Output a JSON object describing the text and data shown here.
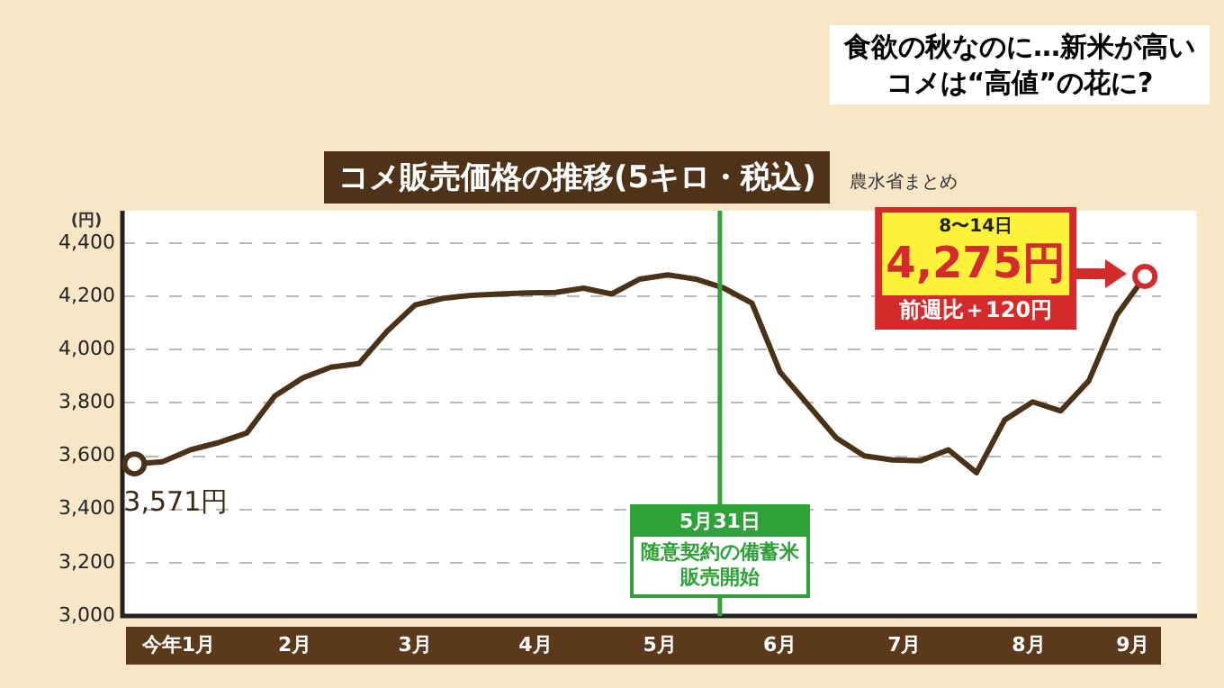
{
  "chart_data": {
    "type": "line",
    "title": "コメ販売価格の推移(5キロ・税込)",
    "ylabel": "(円)",
    "x": [
      "--01-05",
      "--01-12",
      "--01-19",
      "--01-26",
      "--02-02",
      "--02-09",
      "--02-16",
      "--02-23",
      "--03-02",
      "--03-09",
      "--03-16",
      "--03-23",
      "--03-30",
      "--04-06",
      "--04-13",
      "--04-20",
      "--04-27",
      "--05-04",
      "--05-11",
      "--05-18",
      "--05-25",
      "--06-01",
      "--06-08",
      "--06-15",
      "--06-22",
      "--06-29",
      "--07-06",
      "--07-13",
      "--07-20",
      "--07-27",
      "--08-03",
      "--08-10",
      "--08-17",
      "--08-24",
      "--08-31",
      "--09-07",
      "--09-14"
    ],
    "series": [
      {
        "color": "#4a3219",
        "values": [
          3571,
          3579,
          3624,
          3651,
          3687,
          3826,
          3894,
          3934,
          3948,
          4069,
          4168,
          4193,
          4204,
          4209,
          4213,
          4215,
          4231,
          4209,
          4265,
          4281,
          4265,
          4231,
          4175,
          3916,
          3793,
          3669,
          3601,
          3586,
          3583,
          3624,
          3538,
          3736,
          3804,
          3770,
          3883,
          4130,
          4275
        ]
      }
    ],
    "xlim": [
      "--01-02",
      "--09-18"
    ],
    "xticks": [
      {
        "value": "--01-16",
        "label": "今年1月"
      },
      {
        "value": "--02-14",
        "label": "2月"
      },
      {
        "value": "--03-16",
        "label": "3月"
      },
      {
        "value": "--04-15",
        "label": "4月"
      },
      {
        "value": "--05-16",
        "label": "5月"
      },
      {
        "value": "--06-15",
        "label": "6月"
      },
      {
        "value": "--07-16",
        "label": "7月"
      },
      {
        "value": "--08-16",
        "label": "8月"
      },
      {
        "value": "--09-11",
        "label": "9月"
      }
    ],
    "ylim": [
      3000,
      4400
    ],
    "yticks": [
      {
        "value": 3000,
        "label": "3,000"
      },
      {
        "value": 3200,
        "label": "3,200"
      },
      {
        "value": 3400,
        "label": "3,400"
      },
      {
        "value": 3600,
        "label": "3,600"
      },
      {
        "value": 3800,
        "label": "3,800"
      },
      {
        "value": 4000,
        "label": "4,000"
      },
      {
        "value": 4200,
        "label": "4,200"
      },
      {
        "value": 4400,
        "label": "4,400"
      }
    ],
    "grid": "y",
    "marker": "none",
    "line_style": "solid",
    "legend": false,
    "ref_lines": [
      {
        "axis": "x",
        "value": "--05-31",
        "label": "5月31日",
        "color": "#2fa33a"
      }
    ],
    "annotations": [
      "食欲の秋なのに…新米が高い",
      "コメは“高値”の花に?",
      "農水省まとめ",
      {
        "text": "3,571円",
        "x": "--01-05",
        "y": 3571
      },
      {
        "text": "随意契約の備蓄米販売開始",
        "x": "--05-31"
      },
      "8〜14日",
      {
        "text": "4,275円",
        "x": "--09-14",
        "y": 4275
      },
      "前週比＋120円"
    ]
  }
}
